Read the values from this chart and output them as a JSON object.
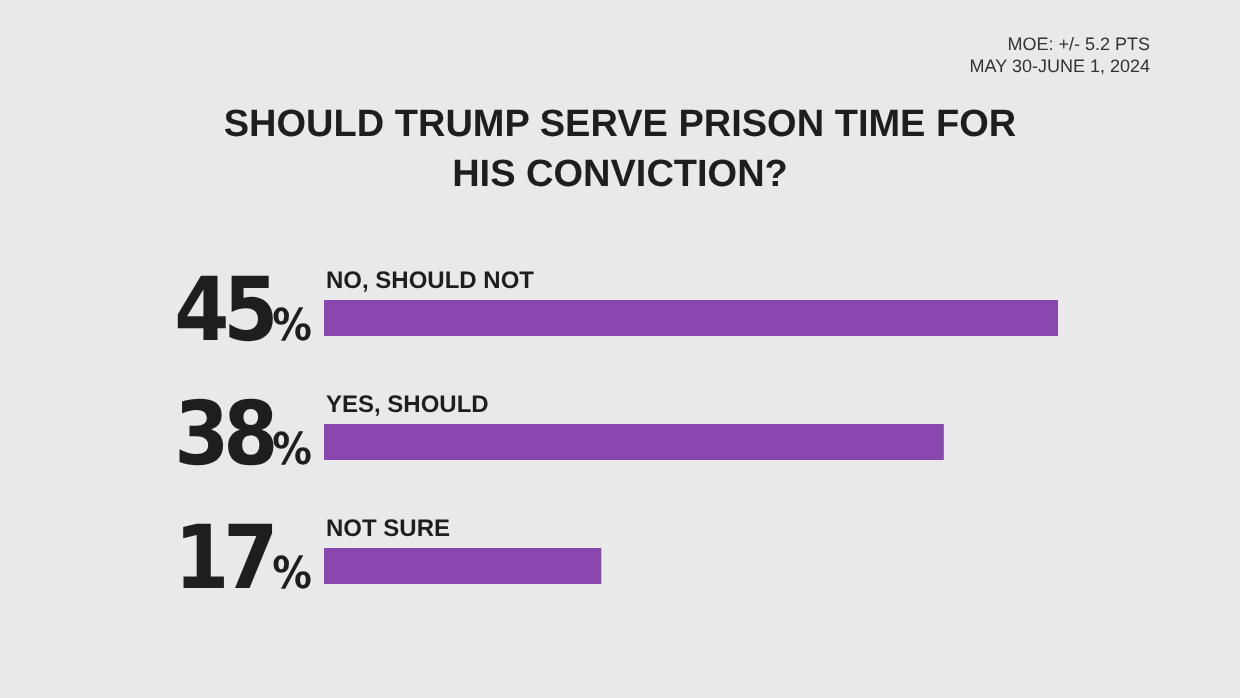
{
  "chart_data": {
    "type": "bar",
    "orientation": "horizontal",
    "title": "SHOULD TRUMP SERVE PRISON TIME FOR HIS CONVICTION?",
    "annotations": [
      "MOE: +/- 5.2 PTS",
      "MAY 30-JUNE 1, 2024"
    ],
    "categories": [
      "NO, SHOULD NOT",
      "YES, SHOULD",
      "NOT SURE"
    ],
    "values": [
      45,
      38,
      17
    ],
    "color": "#8a47b0",
    "value_labels": [
      "45%",
      "38%",
      "17%"
    ]
  }
}
